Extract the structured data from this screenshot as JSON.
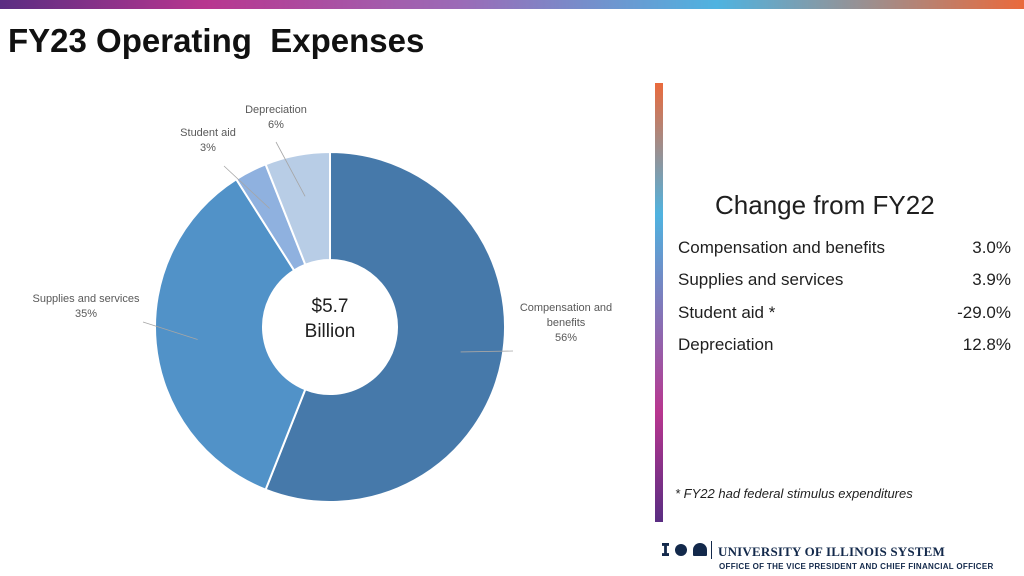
{
  "page": {
    "title": "FY23 Operating  Expenses"
  },
  "chart_data": {
    "type": "pie",
    "title": "",
    "donut": true,
    "center_label": [
      "$5.7",
      "Billion"
    ],
    "categories": [
      "Compensation and benefits",
      "Supplies and services",
      "Student aid",
      "Depreciation"
    ],
    "values": [
      56,
      35,
      3,
      6
    ],
    "colors": [
      "#4679aa",
      "#5192c8",
      "#8fb1df",
      "#b8cde6"
    ],
    "data_labels": [
      "56%",
      "35%",
      "3%",
      "6%"
    ]
  },
  "change_panel": {
    "title": "Change from FY22",
    "rows": [
      {
        "label": "Compensation and benefits",
        "value": "3.0%"
      },
      {
        "label": "Supplies and services",
        "value": "3.9%"
      },
      {
        "label": "Student aid *",
        "value": "-29.0%"
      },
      {
        "label": "Depreciation",
        "value": "12.8%"
      }
    ],
    "footnote": "* FY22 had federal stimulus expenditures"
  },
  "footer": {
    "system_name": "UNIVERSITY OF ILLINOIS SYSTEM",
    "office": "OFFICE OF THE VICE PRESIDENT AND CHIEF FINANCIAL OFFICER",
    "icons": [
      "illinois-i-icon",
      "circle-seal-icon",
      "dome-icon"
    ]
  },
  "colors": {
    "accent_orange": "#ea6a3c",
    "accent_blue": "#4fb3e0",
    "accent_magenta": "#b8368f",
    "accent_purple": "#5a2d82",
    "brand_navy": "#13294b"
  }
}
